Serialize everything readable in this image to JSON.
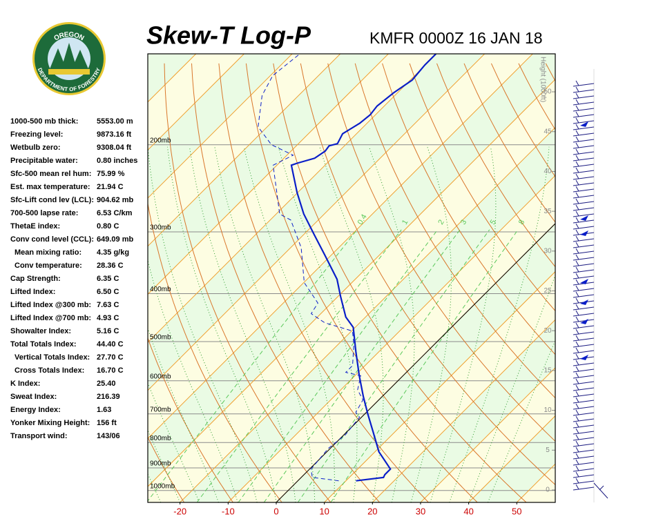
{
  "logo": {
    "top": "OREGON",
    "bottom": "DEPARTMENT OF FORESTRY"
  },
  "stats": [
    [
      "1000-500 mb thick:",
      "5553.00 m"
    ],
    [
      "Freezing level:",
      "9873.16 ft"
    ],
    [
      "Wetbulb zero:",
      "9308.04 ft"
    ],
    [
      "Precipitable water:",
      "0.80 inches"
    ],
    [
      "Sfc-500 mean rel hum:",
      "75.99 %"
    ],
    [
      "Est. max temperature:",
      "21.94 C"
    ],
    [
      "Sfc-Lift cond lev (LCL):",
      "904.62 mb"
    ],
    [
      "700-500 lapse rate:",
      "6.53 C/km"
    ],
    [
      "ThetaE index:",
      "0.80 C"
    ],
    [
      "Conv cond level (CCL):",
      "649.09 mb"
    ],
    [
      "Mean mixing ratio:",
      "4.35 g/kg"
    ],
    [
      "Conv temperature:",
      "28.36 C"
    ],
    [
      "Cap Strength:",
      "6.35 C"
    ],
    [
      "Lifted Index:",
      "6.50 C"
    ],
    [
      "Lifted Index @300 mb:",
      "7.63 C"
    ],
    [
      "Lifted Index @700 mb:",
      "4.93 C"
    ],
    [
      "Showalter Index:",
      "5.16 C"
    ],
    [
      "Total Totals Index:",
      "44.40 C"
    ],
    [
      "Vertical Totals Index:",
      "27.70 C"
    ],
    [
      "Cross Totals Index:",
      "16.70 C"
    ],
    [
      "K Index:",
      "25.40"
    ],
    [
      "Sweat Index:",
      "216.39"
    ],
    [
      "Energy Index:",
      "1.63"
    ],
    [
      "Yonker Mixing Height:",
      "156 ft"
    ],
    [
      "Transport wind:",
      "143/06"
    ]
  ],
  "chart_data": {
    "type": "skew-t",
    "title": "Skew-T Log-P",
    "subtitle": "KMFR 0000Z 16 JAN 18",
    "xlim": [
      -26.7,
      58
    ],
    "xticks": [
      -20,
      -10,
      0,
      10,
      20,
      30,
      40,
      50
    ],
    "ylim": [
      1057,
      131
    ],
    "log_y": true,
    "yticks": [
      {
        "value": 200,
        "label": "200mb"
      },
      {
        "value": 300,
        "label": "300mb"
      },
      {
        "value": 400,
        "label": "400mb"
      },
      {
        "value": 500,
        "label": "500mb"
      },
      {
        "value": 600,
        "label": "600mb"
      },
      {
        "value": 700,
        "label": "700mb"
      },
      {
        "value": 800,
        "label": "800mb"
      },
      {
        "value": 900,
        "label": "900mb"
      },
      {
        "value": 1000,
        "label": "1000mb"
      }
    ],
    "y2label": "Height (1000ft)",
    "y2lim": [
      -1.56,
      54.77
    ],
    "y2ticks": [
      0,
      5,
      10,
      15,
      20,
      25,
      30,
      35,
      40,
      45,
      50
    ],
    "mixing_ratios": [
      0.4,
      1,
      2,
      3,
      5,
      8
    ],
    "series": [
      {
        "color": "#0a1ec8",
        "style": "solid",
        "p": [
          956,
          941,
          929,
          905,
          835,
          759,
          700,
          646,
          586,
          524,
          468,
          446,
          405,
          374,
          334,
          304,
          276,
          250,
          220,
          218,
          213,
          206,
          201,
          199,
          190,
          181,
          174,
          167,
          157,
          148,
          138,
          131
        ],
        "values": [
          12.1,
          17.1,
          16.8,
          16.8,
          10.8,
          5.3,
          0.6,
          -3.9,
          -9.1,
          -14.8,
          -20.4,
          -24.1,
          -29.5,
          -33.8,
          -41.4,
          -47.8,
          -54.3,
          -60.1,
          -67.0,
          -66.2,
          -63.6,
          -62.9,
          -63.2,
          -61.9,
          -62.9,
          -61.5,
          -61.1,
          -61.5,
          -60.8,
          -59.6,
          -60.1,
          -60.1
        ]
      },
      {
        "color": "#0a1ec8",
        "style": "dashed",
        "p": [
          956,
          941,
          905,
          822,
          771,
          711,
          695,
          656,
          626,
          586,
          577,
          559,
          507,
          476,
          458,
          439,
          418,
          380,
          323,
          284,
          276,
          238,
          220,
          210,
          200,
          184,
          159,
          145,
          131
        ],
        "values": [
          8.5,
          2.3,
          0.3,
          -0.4,
          0.3,
          -0.4,
          -2.2,
          -3.3,
          -6.5,
          -8.8,
          -12.6,
          -12.6,
          -16.7,
          -19.8,
          -27.3,
          -32.0,
          -32.8,
          -39.9,
          -47.8,
          -55.7,
          -59.3,
          -66.8,
          -70.8,
          -68.7,
          -75.4,
          -81.9,
          -87.6,
          -89.5,
          -88.4
        ]
      }
    ]
  }
}
